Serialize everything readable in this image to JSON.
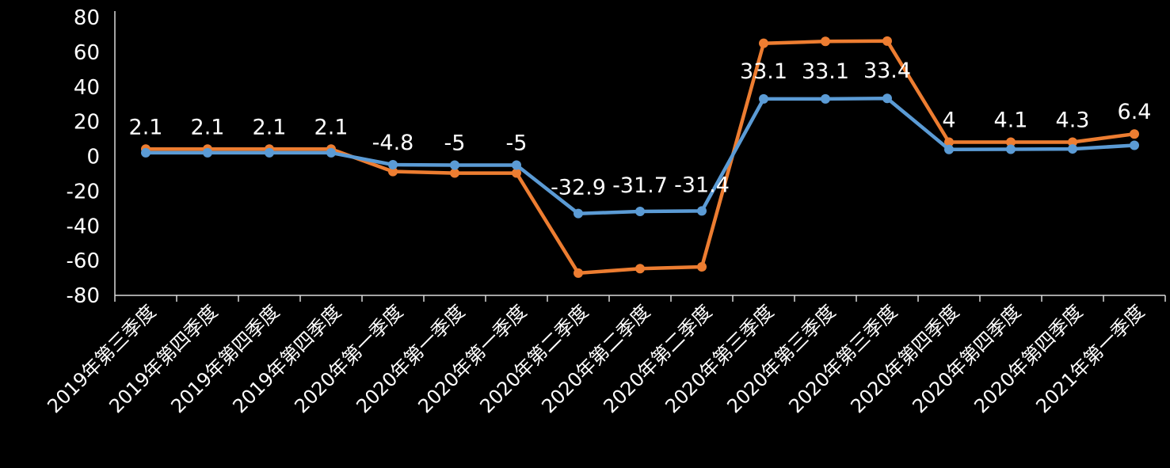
{
  "chart_data": {
    "type": "line",
    "title": "",
    "xlabel": "",
    "ylabel": "",
    "ylim": [
      -80,
      80
    ],
    "yticks": [
      80,
      60,
      40,
      20,
      0,
      -20,
      -40,
      -60,
      -80
    ],
    "categories": [
      "2019年第三季度",
      "2019年第四季度",
      "2019年第四季度",
      "2019年第四季度",
      "2020年第一季度",
      "2020年第一季度",
      "2020年第一季度",
      "2020年第二季度",
      "2020年第二季度",
      "2020年第二季度",
      "2020年第三季度",
      "2020年第三季度",
      "2020年第三季度",
      "2020年第四季度",
      "2020年第四季度",
      "2020年第四季度",
      "2021年第一季度"
    ],
    "series": [
      {
        "name": "blue",
        "color": "#5B9BD5",
        "values": [
          2.1,
          2.1,
          2.1,
          2.1,
          -4.8,
          -5,
          -5,
          -32.9,
          -31.7,
          -31.4,
          33.1,
          33.1,
          33.4,
          4,
          4.1,
          4.3,
          6.4
        ],
        "labels": [
          "2.1",
          "2.1",
          "2.1",
          "2.1",
          "-4.8",
          "-5",
          "-5",
          "-32.9",
          "-31.7",
          "-31.4",
          "33.1",
          "33.1",
          "33.4",
          "4",
          "4.1",
          "4.3",
          "6.4"
        ]
      },
      {
        "name": "orange",
        "color": "#ED7D31",
        "values": [
          4.2,
          4.2,
          4.2,
          4.2,
          -8.7,
          -9.6,
          -9.6,
          -67.2,
          -64.6,
          -63.6,
          65.1,
          66.2,
          66.4,
          8.2,
          8.2,
          8.2,
          12.9
        ]
      }
    ],
    "legend": "none",
    "grid": false
  }
}
